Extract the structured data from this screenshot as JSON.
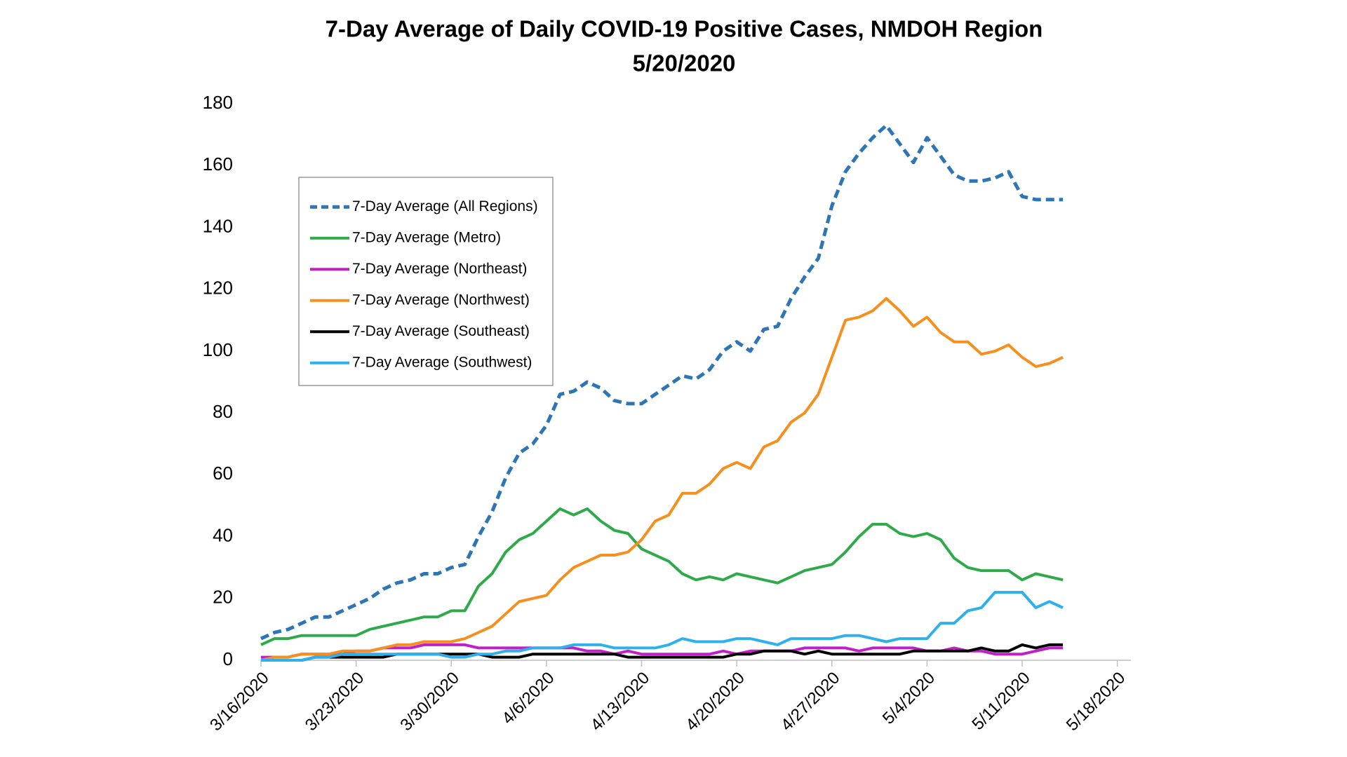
{
  "chart_data": {
    "type": "line",
    "title": "7-Day Average of Daily COVID-19 Positive Cases, NMDOH Region",
    "subtitle": "5/20/2020",
    "x": [
      "3/16/2020",
      "3/17/2020",
      "3/18/2020",
      "3/19/2020",
      "3/20/2020",
      "3/21/2020",
      "3/22/2020",
      "3/23/2020",
      "3/24/2020",
      "3/25/2020",
      "3/26/2020",
      "3/27/2020",
      "3/28/2020",
      "3/29/2020",
      "3/30/2020",
      "3/31/2020",
      "4/1/2020",
      "4/2/2020",
      "4/3/2020",
      "4/4/2020",
      "4/5/2020",
      "4/6/2020",
      "4/7/2020",
      "4/8/2020",
      "4/9/2020",
      "4/10/2020",
      "4/11/2020",
      "4/12/2020",
      "4/13/2020",
      "4/14/2020",
      "4/15/2020",
      "4/16/2020",
      "4/17/2020",
      "4/18/2020",
      "4/19/2020",
      "4/20/2020",
      "4/21/2020",
      "4/22/2020",
      "4/23/2020",
      "4/24/2020",
      "4/25/2020",
      "4/26/2020",
      "4/27/2020",
      "4/28/2020",
      "4/29/2020",
      "4/30/2020",
      "5/1/2020",
      "5/2/2020",
      "5/3/2020",
      "5/4/2020",
      "5/5/2020",
      "5/6/2020",
      "5/7/2020",
      "5/8/2020",
      "5/9/2020",
      "5/10/2020",
      "5/11/2020",
      "5/12/2020",
      "5/13/2020",
      "5/14/2020"
    ],
    "series": [
      {
        "name": "7-Day Average (All Regions)",
        "color": "#2e75b6",
        "dashed": true,
        "values": [
          7,
          9,
          10,
          12,
          14,
          14,
          16,
          18,
          20,
          23,
          25,
          26,
          28,
          28,
          30,
          31,
          40,
          48,
          59,
          67,
          70,
          76,
          86,
          87,
          90,
          88,
          84,
          83,
          83,
          86,
          89,
          92,
          91,
          94,
          100,
          103,
          100,
          107,
          108,
          117,
          124,
          130,
          147,
          158,
          164,
          169,
          173,
          167,
          161,
          169,
          163,
          157,
          155,
          155,
          156,
          158,
          150,
          149,
          149,
          149
        ]
      },
      {
        "name": "7-Day Average (Metro)",
        "color": "#2eaa4a",
        "dashed": false,
        "values": [
          5,
          7,
          7,
          8,
          8,
          8,
          8,
          8,
          10,
          11,
          12,
          13,
          14,
          14,
          16,
          16,
          24,
          28,
          35,
          39,
          41,
          45,
          49,
          47,
          49,
          45,
          42,
          41,
          36,
          34,
          32,
          28,
          26,
          27,
          26,
          28,
          27,
          26,
          25,
          27,
          29,
          30,
          31,
          35,
          40,
          44,
          44,
          41,
          40,
          41,
          39,
          33,
          30,
          29,
          29,
          29,
          26,
          28,
          27,
          26
        ]
      },
      {
        "name": "7-Day Average (Northeast)",
        "color": "#c21fc8",
        "dashed": false,
        "values": [
          1,
          1,
          1,
          2,
          2,
          2,
          2,
          3,
          3,
          4,
          4,
          4,
          5,
          5,
          5,
          5,
          4,
          4,
          4,
          4,
          4,
          4,
          4,
          4,
          3,
          3,
          2,
          3,
          2,
          2,
          2,
          2,
          2,
          2,
          3,
          2,
          3,
          3,
          3,
          3,
          4,
          4,
          4,
          4,
          3,
          4,
          4,
          4,
          4,
          3,
          3,
          4,
          3,
          3,
          2,
          2,
          2,
          3,
          4,
          4
        ]
      },
      {
        "name": "7-Day Average (Northwest)",
        "color": "#f5901e",
        "dashed": false,
        "values": [
          0,
          1,
          1,
          2,
          2,
          2,
          3,
          3,
          3,
          4,
          5,
          5,
          6,
          6,
          6,
          7,
          9,
          11,
          15,
          19,
          20,
          21,
          26,
          30,
          32,
          34,
          34,
          35,
          39,
          45,
          47,
          54,
          54,
          57,
          62,
          64,
          62,
          69,
          71,
          77,
          80,
          86,
          98,
          110,
          111,
          113,
          117,
          113,
          108,
          111,
          106,
          103,
          103,
          99,
          100,
          102,
          98,
          95,
          96,
          98
        ]
      },
      {
        "name": "7-Day Average (Southeast)",
        "color": "#000000",
        "dashed": false,
        "values": [
          0,
          0,
          0,
          0,
          1,
          1,
          1,
          1,
          1,
          1,
          2,
          2,
          2,
          2,
          2,
          2,
          2,
          1,
          1,
          1,
          2,
          2,
          2,
          2,
          2,
          2,
          2,
          1,
          1,
          1,
          1,
          1,
          1,
          1,
          1,
          2,
          2,
          3,
          3,
          3,
          2,
          3,
          2,
          2,
          2,
          2,
          2,
          2,
          3,
          3,
          3,
          3,
          3,
          4,
          3,
          3,
          5,
          4,
          5,
          5
        ]
      },
      {
        "name": "7-Day Average (Southwest)",
        "color": "#2eb1ea",
        "dashed": false,
        "values": [
          0,
          0,
          0,
          0,
          1,
          1,
          2,
          2,
          2,
          2,
          2,
          2,
          2,
          2,
          1,
          1,
          2,
          2,
          3,
          3,
          4,
          4,
          4,
          5,
          5,
          5,
          4,
          4,
          4,
          4,
          5,
          7,
          6,
          6,
          6,
          7,
          7,
          6,
          5,
          7,
          7,
          7,
          7,
          8,
          8,
          7,
          6,
          7,
          7,
          7,
          12,
          12,
          16,
          17,
          22,
          22,
          22,
          17,
          19,
          17
        ]
      }
    ],
    "xlim": [
      "3/16/2020",
      "5/19/2020"
    ],
    "xticks": [
      "3/16/2020",
      "3/23/2020",
      "3/30/2020",
      "4/6/2020",
      "4/13/2020",
      "4/20/2020",
      "4/27/2020",
      "5/4/2020",
      "5/11/2020",
      "5/18/2020"
    ],
    "ylim": [
      0,
      180
    ],
    "yticks": [
      0,
      20,
      40,
      60,
      80,
      100,
      120,
      140,
      160,
      180
    ],
    "grid": false,
    "legend": "upper left"
  }
}
